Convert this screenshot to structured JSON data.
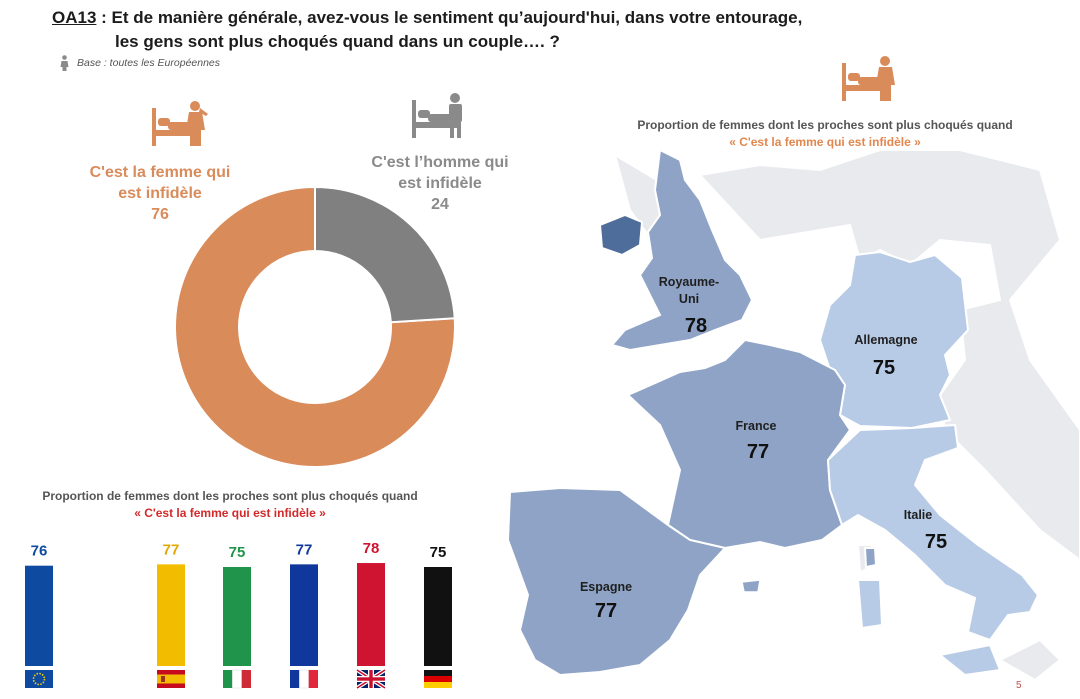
{
  "header": {
    "code": "OA13",
    "question_line1": " : Et de manière générale, avez-vous le sentiment qu’aujourd'hui, dans votre entourage,",
    "question_line2": "les gens sont plus choqués quand dans un couple…. ?",
    "base": "Base : toutes les Européennes"
  },
  "donut_labels": {
    "femme_line1": "C'est la femme qui",
    "femme_line2": "est infidèle",
    "homme_line1": "C'est l’homme qui",
    "homme_line2": "est infidèle"
  },
  "bar_caption": {
    "line1": "Proportion de femmes dont les proches sont plus choqués quand",
    "line2": "« C'est la femme qui est infidèle »"
  },
  "map": {
    "caption_line1": "Proportion de femmes dont les proches sont plus choqués quand",
    "caption_line2": "« C'est la femme qui est infidèle »",
    "countries": [
      {
        "name_line1": "Royaume-",
        "name_line2": "Uni",
        "value": "78"
      },
      {
        "name_line1": "Allemagne",
        "name_line2": "",
        "value": "75"
      },
      {
        "name_line1": "France",
        "name_line2": "",
        "value": "77"
      },
      {
        "name_line1": "Italie",
        "name_line2": "",
        "value": "75"
      },
      {
        "name_line1": "Espagne",
        "name_line2": "",
        "value": "77"
      }
    ]
  },
  "page_number": "5",
  "colors": {
    "femme": "#d98b5a",
    "homme": "#808080",
    "map_dark": "#8ea3c6",
    "map_light": "#b7cbe6"
  },
  "chart_data": [
    {
      "type": "pie",
      "title": "",
      "categories": [
        "C'est la femme qui est infidèle",
        "C'est l’homme qui est infidèle"
      ],
      "values": [
        76,
        24
      ],
      "colors": [
        "#d98b5a",
        "#808080"
      ]
    },
    {
      "type": "bar",
      "title": "Proportion de femmes dont les proches sont plus choqués quand « C'est la femme qui est infidèle »",
      "categories": [
        "Europe",
        "Espagne",
        "Italie",
        "France",
        "Royaume-Uni",
        "Allemagne"
      ],
      "values": [
        76,
        77,
        75,
        77,
        78,
        75
      ],
      "colors": [
        "#0d4aa0",
        "#f2bd00",
        "#1f944a",
        "#10389c",
        "#cf1432",
        "#111111"
      ],
      "value_colors": [
        "#0d4aa0",
        "#e0a800",
        "#1f944a",
        "#10389c",
        "#cf1432",
        "#111111"
      ],
      "ylim": [
        0,
        100
      ]
    }
  ]
}
